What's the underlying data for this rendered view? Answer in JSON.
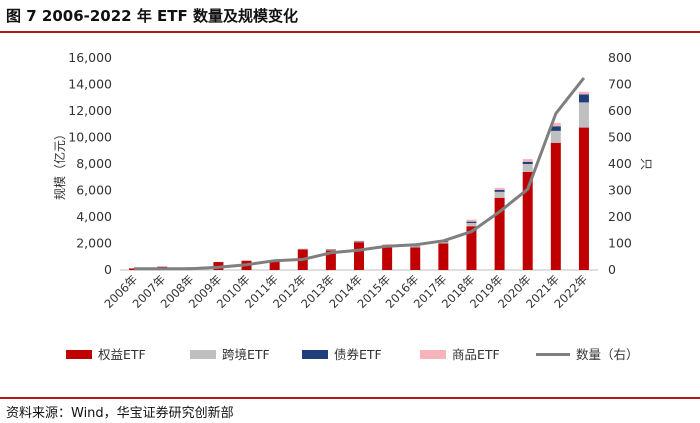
{
  "title": "图 7  2006-2022 年 ETF 数量及规模变化",
  "source": "资料来源：Wind，华宝证券研究创新部",
  "colors": {
    "equity": "#c00000",
    "cross_border": "#bfbfbf",
    "bond": "#1f3f7a",
    "commodity": "#f7b3ba",
    "count": "#7f7f7f",
    "rule": "#b4161d"
  },
  "chart_data": {
    "type": "bar",
    "categories": [
      "2006年",
      "2007年",
      "2008年",
      "2009年",
      "2010年",
      "2011年",
      "2012年",
      "2013年",
      "2014年",
      "2015年",
      "2016年",
      "2017年",
      "2018年",
      "2019年",
      "2020年",
      "2021年",
      "2022年"
    ],
    "series": [
      {
        "name": "权益ETF",
        "type": "bar",
        "stack": "scale",
        "values": [
          120,
          250,
          200,
          600,
          700,
          650,
          1550,
          1480,
          2100,
          1750,
          1700,
          2000,
          3300,
          5450,
          7400,
          9600,
          10750
        ]
      },
      {
        "name": "跨境ETF",
        "type": "bar",
        "stack": "scale",
        "values": [
          0,
          0,
          0,
          0,
          0,
          20,
          60,
          60,
          60,
          90,
          90,
          100,
          250,
          450,
          600,
          900,
          1900
        ]
      },
      {
        "name": "债券ETF",
        "type": "bar",
        "stack": "scale",
        "values": [
          0,
          0,
          0,
          0,
          0,
          0,
          0,
          15,
          20,
          30,
          40,
          50,
          100,
          150,
          170,
          350,
          600
        ]
      },
      {
        "name": "商品ETF",
        "type": "bar",
        "stack": "scale",
        "values": [
          0,
          0,
          0,
          0,
          0,
          0,
          0,
          20,
          30,
          70,
          90,
          100,
          150,
          150,
          200,
          250,
          200
        ]
      },
      {
        "name": "数量（右）",
        "type": "line",
        "axis": "right",
        "values": [
          5,
          5,
          5,
          10,
          20,
          35,
          40,
          65,
          75,
          90,
          95,
          110,
          145,
          220,
          305,
          590,
          725
        ]
      }
    ],
    "ylabel": "规模（亿元）",
    "y2label": "只",
    "ylim": [
      0,
      16000
    ],
    "y2lim": [
      0,
      800
    ],
    "yticks": [
      "0",
      "2,000",
      "4,000",
      "6,000",
      "8,000",
      "10,000",
      "12,000",
      "14,000",
      "16,000"
    ],
    "y2ticks": [
      "0",
      "100",
      "200",
      "300",
      "400",
      "500",
      "600",
      "700",
      "800"
    ],
    "legend_position": "bottom",
    "grid": false
  }
}
